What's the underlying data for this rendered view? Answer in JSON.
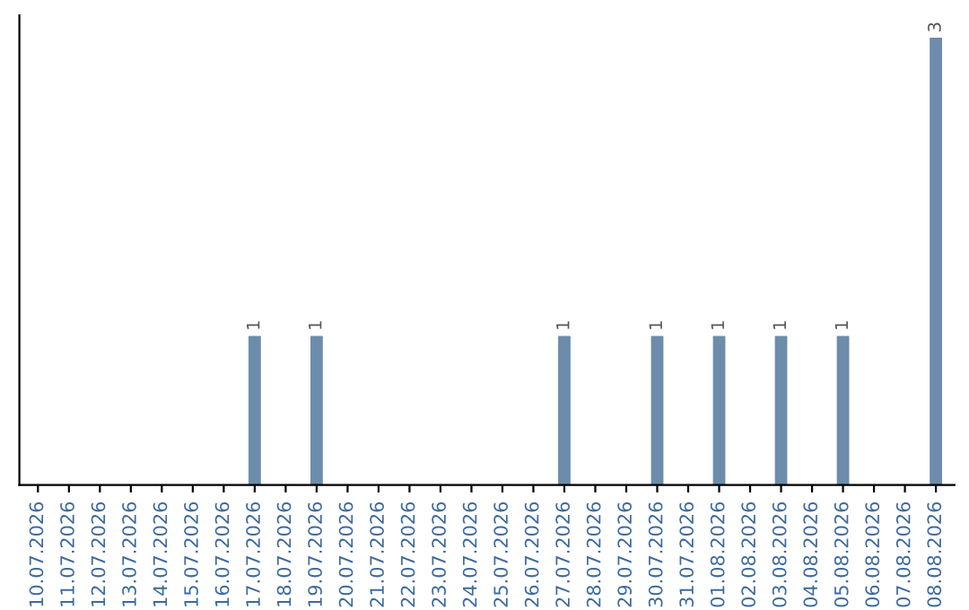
{
  "chart_data": {
    "type": "bar",
    "categories": [
      "10.07.2026",
      "11.07.2026",
      "12.07.2026",
      "13.07.2026",
      "14.07.2026",
      "15.07.2026",
      "16.07.2026",
      "17.07.2026",
      "18.07.2026",
      "19.07.2026",
      "20.07.2026",
      "21.07.2026",
      "22.07.2026",
      "23.07.2026",
      "24.07.2026",
      "25.07.2026",
      "26.07.2026",
      "27.07.2026",
      "28.07.2026",
      "29.07.2026",
      "30.07.2026",
      "31.07.2026",
      "01.08.2026",
      "02.08.2026",
      "03.08.2026",
      "04.08.2026",
      "05.08.2026",
      "06.08.2026",
      "07.08.2026",
      "08.08.2026"
    ],
    "values": [
      0,
      0,
      0,
      0,
      0,
      0,
      0,
      1,
      0,
      1,
      0,
      0,
      0,
      0,
      0,
      0,
      0,
      1,
      0,
      0,
      1,
      0,
      1,
      0,
      1,
      0,
      1,
      0,
      0,
      3
    ],
    "value_labels": [
      null,
      null,
      null,
      null,
      null,
      null,
      null,
      "1",
      null,
      "1",
      null,
      null,
      null,
      null,
      null,
      null,
      null,
      "1",
      null,
      null,
      "1",
      null,
      "1",
      null,
      "1",
      null,
      "1",
      null,
      null,
      "3"
    ],
    "color": "#6d8cab",
    "tick_labels": "x",
    "grid": false,
    "legend": false
  }
}
